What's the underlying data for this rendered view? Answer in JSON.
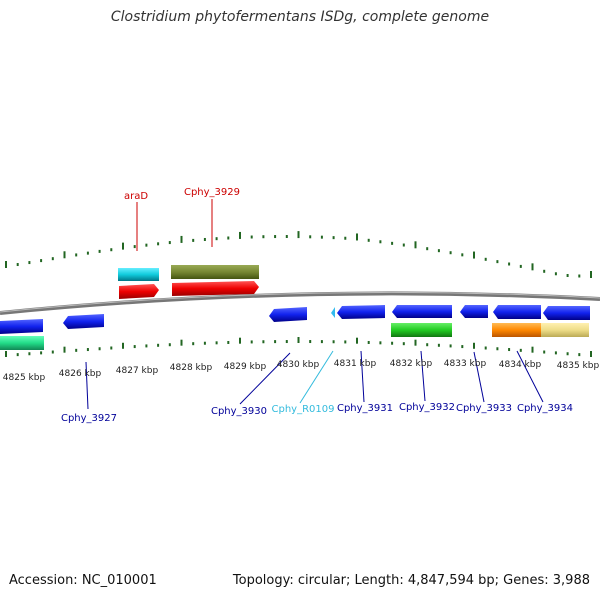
{
  "title": "Clostridium phytofermentans ISDg, complete genome",
  "footer": {
    "accession": "Accession: NC_010001",
    "topology": "Topology: circular; Length: 4,847,594 bp; Genes: 3,988"
  },
  "colors": {
    "forward_label": "#cc0000",
    "reverse_label": "#000099",
    "rna_label": "#33bbdd",
    "tick": "#226622",
    "backbone": "#888888"
  },
  "scale": {
    "labels": [
      "4825 kbp",
      "4826 kbp",
      "4827 kbp",
      "4828 kbp",
      "4829 kbp",
      "4830 kbp",
      "4831 kbp",
      "4832 kbp",
      "4833 kbp",
      "4834 kbp",
      "4835 kbp"
    ]
  },
  "gene_labels": [
    {
      "name": "araD",
      "strand": "forward"
    },
    {
      "name": "Cphy_3929",
      "strand": "forward"
    },
    {
      "name": "Cphy_3927",
      "strand": "reverse"
    },
    {
      "name": "Cphy_3930",
      "strand": "reverse"
    },
    {
      "name": "Cphy_R0109",
      "strand": "rna"
    },
    {
      "name": "Cphy_3931",
      "strand": "reverse"
    },
    {
      "name": "Cphy_3932",
      "strand": "reverse"
    },
    {
      "name": "Cphy_3933",
      "strand": "reverse"
    },
    {
      "name": "Cphy_3934",
      "strand": "reverse"
    }
  ]
}
